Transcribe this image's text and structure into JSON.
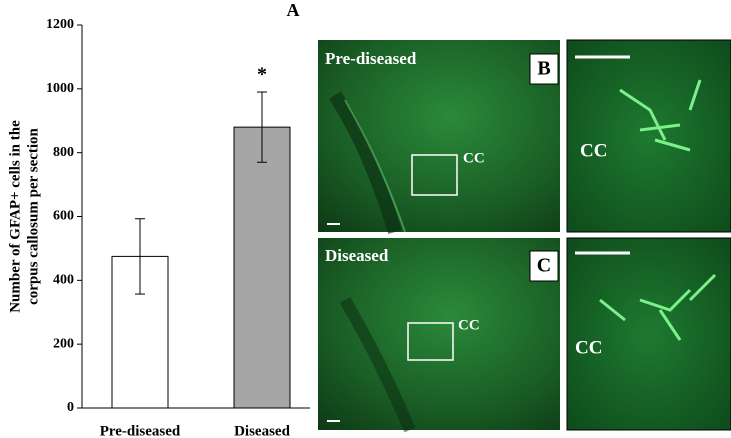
{
  "chart_data": {
    "type": "bar",
    "title": "A",
    "ylabel": [
      "Number of GFAP+ cells in the",
      "corpus callosum per section"
    ],
    "categories": [
      "Pre-diseased",
      "Diseased"
    ],
    "values": [
      475,
      880
    ],
    "errors": [
      118,
      110
    ],
    "colors": [
      "#ffffff",
      "#a6a6a6"
    ],
    "annotation": "*",
    "ylim": [
      0,
      1200
    ],
    "yticks": [
      0,
      200,
      400,
      600,
      800,
      1000,
      1200
    ],
    "grid": false
  },
  "panels": [
    {
      "letter": "B",
      "label": "Pre-diseased",
      "region": "CC",
      "inset_region": "CC"
    },
    {
      "letter": "C",
      "label": "Diseased",
      "region": "CC",
      "inset_region": "CC"
    }
  ]
}
